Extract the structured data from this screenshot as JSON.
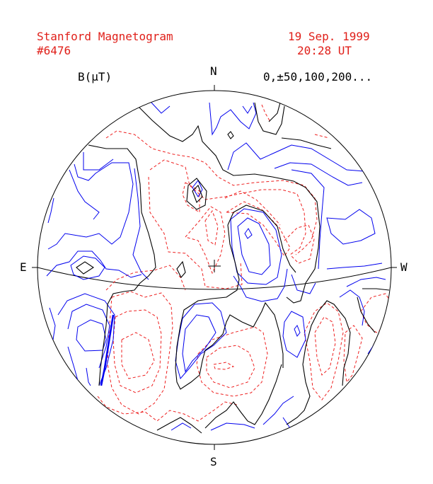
{
  "header": {
    "title": "Stanford Magnetogram",
    "number": "#6476",
    "date": "19 Sep. 1999",
    "time": "20:28 UT"
  },
  "legend": {
    "unit_label": "B(μT)",
    "levels_label": "0,±50,100,200..."
  },
  "compass": {
    "north": "N",
    "south": "S",
    "east": "E",
    "west": "W"
  },
  "colors": {
    "text": "#e0201a",
    "positive": "#0000ee",
    "negative": "#ee2020",
    "zero": "#000000",
    "outline": "#000000"
  }
}
